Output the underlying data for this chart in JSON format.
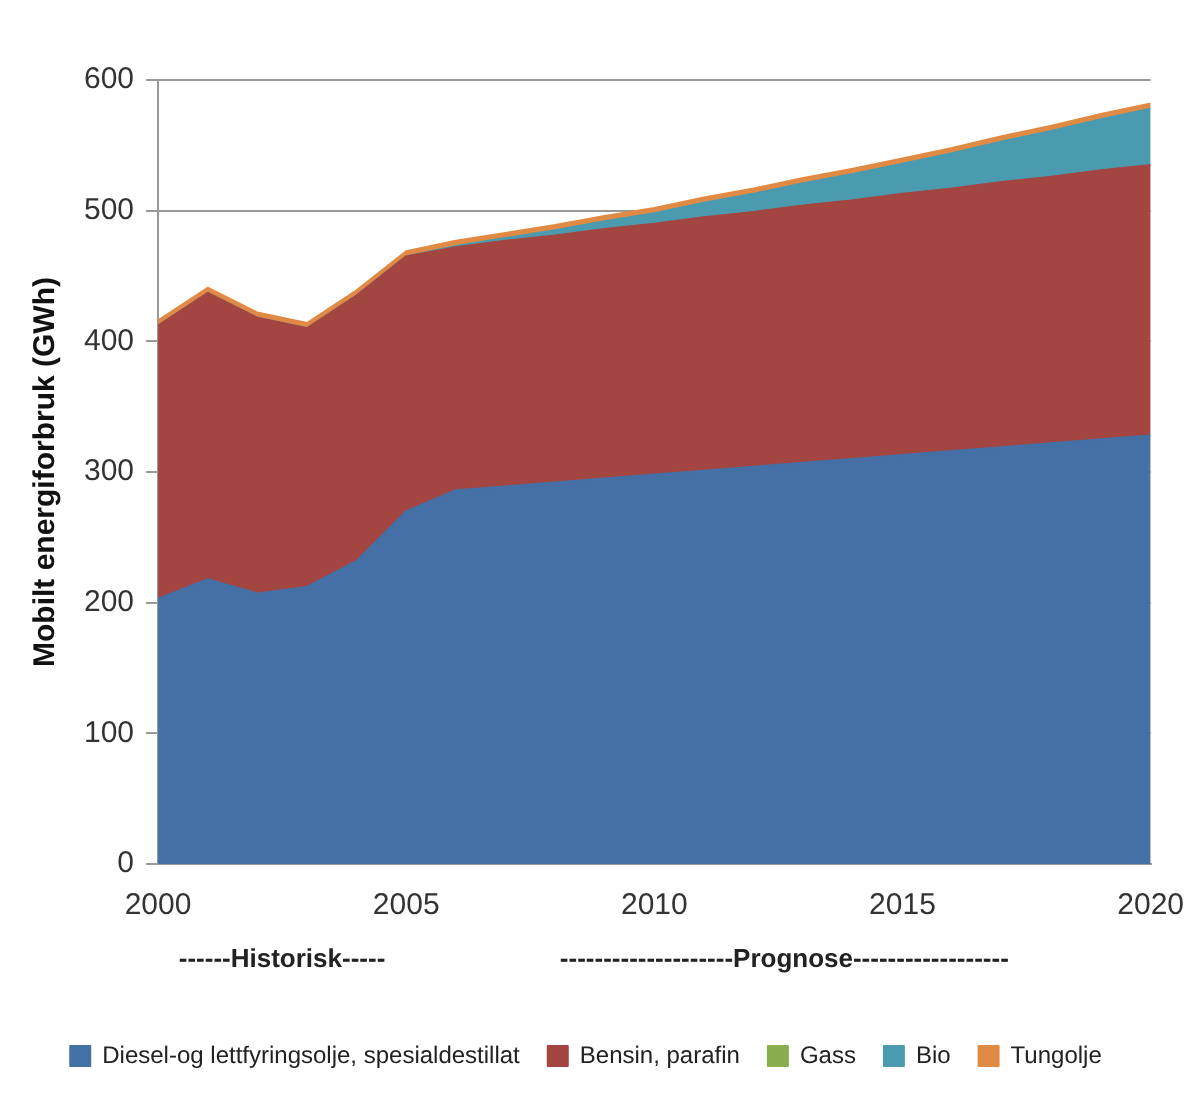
{
  "chart_data": {
    "type": "area",
    "stacked": true,
    "ylabel": "Mobilt energiforbruk (GWh)",
    "x": [
      2000,
      2001,
      2002,
      2003,
      2004,
      2005,
      2006,
      2007,
      2008,
      2009,
      2010,
      2011,
      2012,
      2013,
      2014,
      2015,
      2016,
      2017,
      2018,
      2019,
      2020
    ],
    "xlim": [
      2000,
      2020
    ],
    "xticks": [
      2000,
      2005,
      2010,
      2015,
      2020
    ],
    "ylim": [
      0,
      600
    ],
    "yticks": [
      0,
      100,
      200,
      300,
      400,
      500,
      600
    ],
    "grid": "y",
    "legend": "bottom",
    "marker": "none",
    "annotations": [
      "------Historisk-----",
      "--------------------Prognose------------------"
    ],
    "series": [
      {
        "name": "Diesel-og lettfyringsolje, spesialdestillat",
        "color": "#4470a5",
        "values": [
          203,
          218,
          207,
          212,
          232,
          270,
          286,
          289,
          292,
          295,
          298,
          301,
          304,
          307,
          310,
          313,
          316,
          319,
          322,
          325,
          328
        ]
      },
      {
        "name": "Bensin, parafin",
        "color": "#a34541",
        "values": [
          209,
          219,
          211,
          198,
          203,
          195,
          186,
          188,
          189,
          191,
          192,
          194,
          195,
          197,
          198,
          200,
          201,
          203,
          204,
          206,
          207
        ]
      },
      {
        "name": "Gass",
        "color": "#8bad4d",
        "values": [
          null,
          null,
          null,
          null,
          null,
          null,
          null,
          null,
          null,
          null,
          null,
          null,
          null,
          null,
          null,
          null,
          null,
          null,
          null,
          null,
          null
        ]
      },
      {
        "name": "Bio",
        "color": "#4a9bb0",
        "values": [
          0,
          0,
          0,
          0,
          0,
          0,
          1,
          2,
          4,
          6,
          8,
          11,
          14,
          17,
          20,
          23,
          27,
          31,
          35,
          39,
          43
        ]
      },
      {
        "name": "Tungolje",
        "color": "#e08a44",
        "values": [
          4,
          4,
          4,
          4,
          4,
          4,
          4,
          4,
          4,
          4,
          4,
          4,
          4,
          4,
          4,
          4,
          4,
          4,
          4,
          4,
          4
        ]
      }
    ]
  }
}
